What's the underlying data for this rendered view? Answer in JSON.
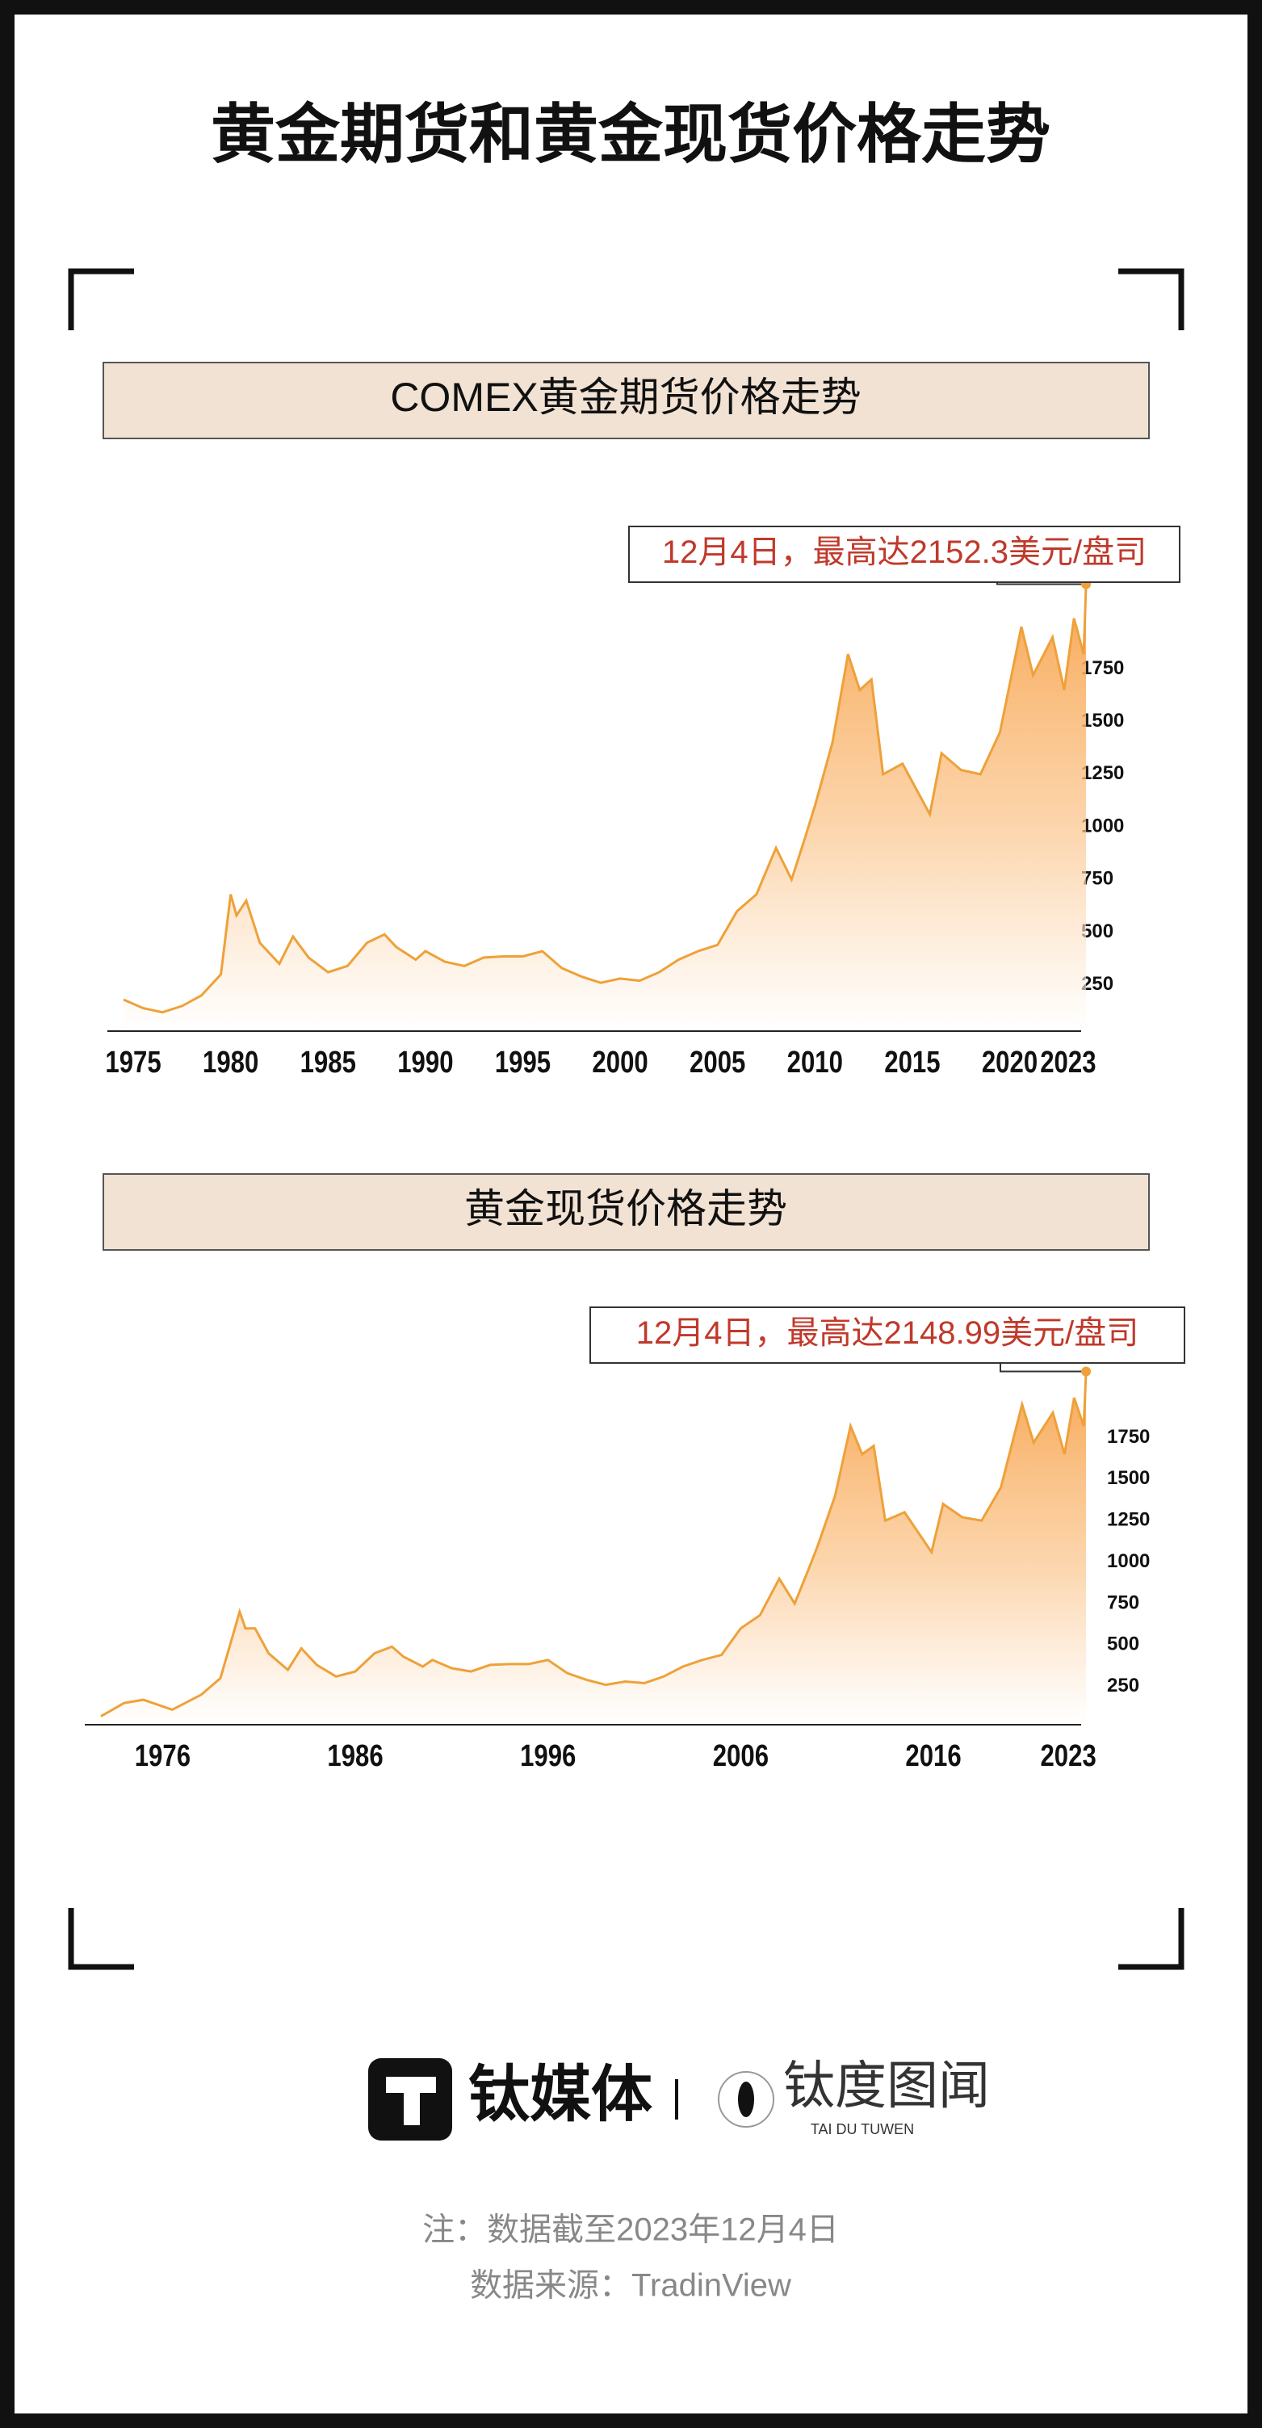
{
  "title": "黄金期货和黄金现货价格走势",
  "chart_data": [
    {
      "type": "area",
      "title": "COMEX黄金期货价格走势",
      "annotation": "12月4日，最高达2152.3美元/盘司",
      "color": "#eea13a",
      "x": [
        1974.5,
        1975.5,
        1976.5,
        1977.5,
        1978.5,
        1979.5,
        1980.0,
        1980.3,
        1980.8,
        1981.5,
        1982.5,
        1983.2,
        1984,
        1985,
        1986,
        1987,
        1987.9,
        1988.5,
        1989.5,
        1990,
        1991,
        1992,
        1993,
        1994,
        1995,
        1996,
        1997,
        1998,
        1999,
        2000,
        2001,
        2002,
        2003,
        2004,
        2005,
        2006,
        2007,
        2008,
        2008.8,
        2009.5,
        2010,
        2010.9,
        2011.7,
        2012.3,
        2012.9,
        2013.5,
        2014.5,
        2015.9,
        2016.5,
        2017.5,
        2018.5,
        2019.5,
        2020.6,
        2021.2,
        2022.2,
        2022.8,
        2023.3,
        2023.8,
        2023.92
      ],
      "values": [
        180,
        140,
        120,
        150,
        200,
        300,
        680,
        580,
        650,
        450,
        350,
        480,
        380,
        310,
        340,
        450,
        490,
        430,
        370,
        410,
        360,
        340,
        380,
        385,
        385,
        410,
        330,
        290,
        260,
        280,
        270,
        310,
        370,
        410,
        440,
        600,
        680,
        900,
        750,
        950,
        1100,
        1400,
        1820,
        1650,
        1700,
        1250,
        1300,
        1060,
        1350,
        1270,
        1250,
        1450,
        1950,
        1720,
        1900,
        1650,
        1990,
        1820,
        2152.3
      ],
      "xlim": [
        1974.5,
        2024
      ],
      "xticks": [
        1975,
        1980,
        1985,
        1990,
        1995,
        2000,
        2005,
        2010,
        2015,
        2020,
        2023
      ],
      "ylim": [
        0,
        2200
      ],
      "yticks": [
        250,
        500,
        750,
        1000,
        1250,
        1500,
        1750
      ]
    },
    {
      "type": "area",
      "title": "黄金现货价格走势",
      "annotation": "12月4日，最高达2148.99美元/盘司",
      "color": "#eea13a",
      "x": [
        1972.8,
        1974,
        1975,
        1976.5,
        1978,
        1979,
        1980.0,
        1980.3,
        1980.8,
        1981.5,
        1982.5,
        1983.2,
        1984,
        1985,
        1986,
        1987,
        1987.9,
        1988.5,
        1989.5,
        1990,
        1991,
        1992,
        1993,
        1994,
        1995,
        1996,
        1997,
        1998,
        1999,
        2000,
        2001,
        2002,
        2003,
        2004,
        2005,
        2006,
        2007,
        2008,
        2008.8,
        2009.5,
        2010,
        2010.9,
        2011.7,
        2012.3,
        2012.9,
        2013.5,
        2014.5,
        2015.9,
        2016.5,
        2017.5,
        2018.5,
        2019.5,
        2020.6,
        2021.2,
        2022.2,
        2022.8,
        2023.3,
        2023.8,
        2023.92
      ],
      "values": [
        70,
        150,
        170,
        110,
        200,
        300,
        700,
        600,
        600,
        450,
        350,
        480,
        380,
        310,
        340,
        450,
        490,
        430,
        370,
        410,
        360,
        340,
        380,
        385,
        385,
        410,
        330,
        290,
        260,
        280,
        270,
        310,
        370,
        410,
        440,
        600,
        680,
        900,
        750,
        950,
        1100,
        1400,
        1820,
        1650,
        1700,
        1250,
        1300,
        1060,
        1350,
        1270,
        1250,
        1450,
        1950,
        1720,
        1900,
        1650,
        1990,
        1820,
        2148.99
      ],
      "xlim": [
        1972.8,
        2024
      ],
      "xticks": [
        1976,
        1986,
        1996,
        2006,
        2016,
        2023
      ],
      "ylim": [
        0,
        2200
      ],
      "yticks": [
        250,
        500,
        750,
        1000,
        1250,
        1500,
        1750
      ]
    }
  ],
  "brand": {
    "name": "钛媒体",
    "sub": "钛度图闻",
    "sub_en": "TAI DU TUWEN"
  },
  "notes": [
    "注：数据截至2023年12月4日",
    "数据来源：TradinView"
  ]
}
